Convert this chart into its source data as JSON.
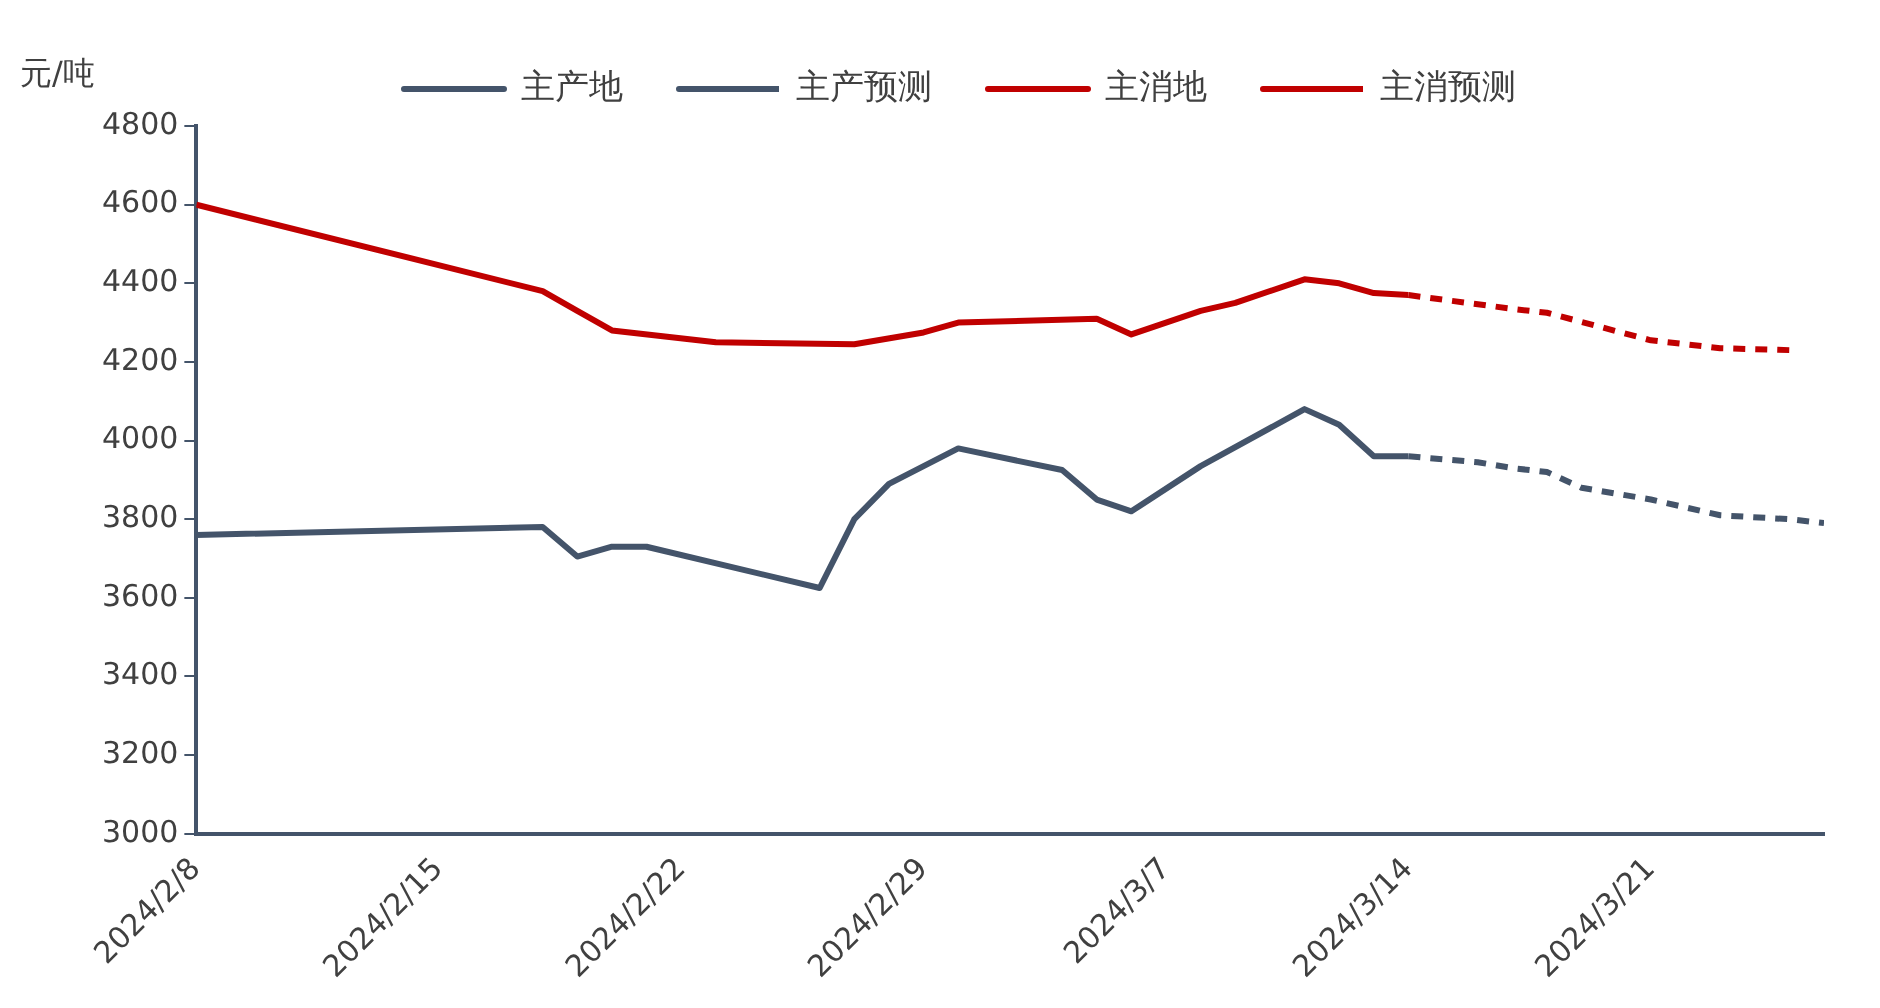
{
  "chart_data": {
    "type": "line",
    "ylabel": "元/吨",
    "legend": "top",
    "marker": "none",
    "grid": false,
    "xlim": [
      "2024-02-08",
      "2024-03-26"
    ],
    "xticks": [
      {
        "value": "2024-02-08",
        "label": "2024/2/8"
      },
      {
        "value": "2024-02-15",
        "label": "2024/2/15"
      },
      {
        "value": "2024-02-22",
        "label": "2024/2/22"
      },
      {
        "value": "2024-02-29",
        "label": "2024/2/29"
      },
      {
        "value": "2024-03-07",
        "label": "2024/3/7"
      },
      {
        "value": "2024-03-14",
        "label": "2024/3/14"
      },
      {
        "value": "2024-03-21",
        "label": "2024/3/21"
      }
    ],
    "ylim": [
      3000,
      4800
    ],
    "yticks": [
      3000,
      3200,
      3400,
      3600,
      3800,
      4000,
      4200,
      4400,
      4600,
      4800
    ],
    "series": [
      {
        "name": "主产地",
        "color": "#44546a",
        "line_style": "solid",
        "x": [
          "2024-02-08",
          "2024-02-18",
          "2024-02-19",
          "2024-02-20",
          "2024-02-21",
          "2024-02-26",
          "2024-02-27",
          "2024-02-28",
          "2024-03-01",
          "2024-03-04",
          "2024-03-05",
          "2024-03-06",
          "2024-03-08",
          "2024-03-11",
          "2024-03-12",
          "2024-03-13",
          "2024-03-14"
        ],
        "values": [
          3760,
          3780,
          3705,
          3730,
          3730,
          3625,
          3800,
          3890,
          3980,
          3925,
          3850,
          3820,
          3935,
          4080,
          4040,
          3960,
          3960
        ]
      },
      {
        "name": "主产预测",
        "color": "#44546a",
        "line_style": "dashed",
        "x": [
          "2024-03-14",
          "2024-03-16",
          "2024-03-17",
          "2024-03-18",
          "2024-03-19",
          "2024-03-21",
          "2024-03-23",
          "2024-03-25",
          "2024-03-26"
        ],
        "values": [
          3960,
          3945,
          3930,
          3920,
          3880,
          3850,
          3810,
          3800,
          3790
        ]
      },
      {
        "name": "主消地",
        "color": "#c00000",
        "line_style": "solid",
        "x": [
          "2024-02-08",
          "2024-02-18",
          "2024-02-19",
          "2024-02-20",
          "2024-02-23",
          "2024-02-27",
          "2024-02-29",
          "2024-03-01",
          "2024-03-05",
          "2024-03-06",
          "2024-03-08",
          "2024-03-09",
          "2024-03-11",
          "2024-03-12",
          "2024-03-13",
          "2024-03-14"
        ],
        "values": [
          4600,
          4380,
          4330,
          4280,
          4250,
          4245,
          4275,
          4300,
          4310,
          4270,
          4330,
          4350,
          4410,
          4400,
          4375,
          4370
        ]
      },
      {
        "name": "主消预测",
        "color": "#c00000",
        "line_style": "dashed",
        "x": [
          "2024-03-14",
          "2024-03-17",
          "2024-03-18",
          "2024-03-21",
          "2024-03-23",
          "2024-03-25"
        ],
        "values": [
          4370,
          4335,
          4325,
          4255,
          4235,
          4230
        ]
      }
    ]
  }
}
